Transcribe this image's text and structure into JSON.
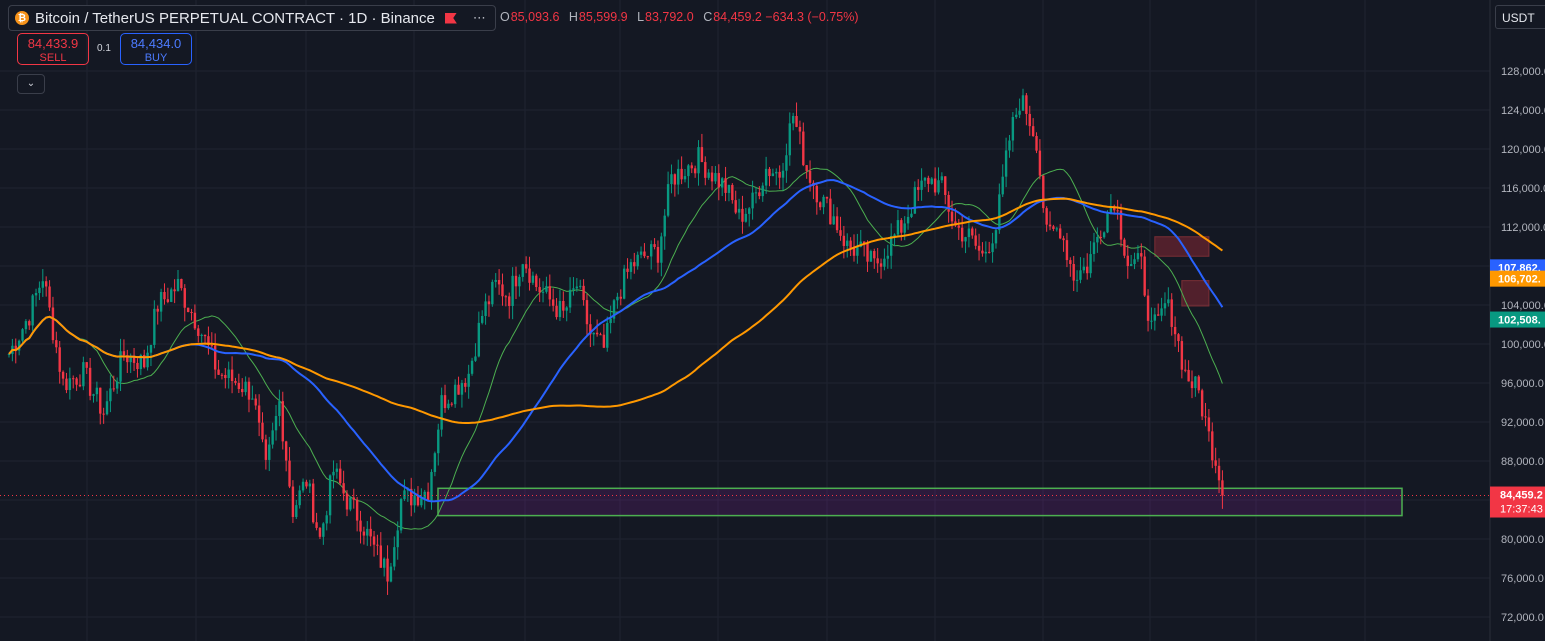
{
  "header": {
    "title": "Bitcoin / TetherUS PERPETUAL CONTRACT · 1D · Binance",
    "more_icon": "more-dots-icon",
    "flag_icon": "flag-icon",
    "coin_icon": "bitcoin-icon"
  },
  "ohlc": {
    "o_label": "O",
    "o": "85,093.6",
    "h_label": "H",
    "h": "85,599.9",
    "l_label": "L",
    "l": "83,792.0",
    "c_label": "C",
    "c": "84,459.2",
    "change": "−634.3 (−0.75%)"
  },
  "trade": {
    "sell_price": "84,433.9",
    "sell_label": "SELL",
    "buy_price": "84,434.0",
    "buy_label": "BUY",
    "spread": "0.1",
    "collapse_icon": "chevron-down-icon"
  },
  "currency": "USDT",
  "colors": {
    "background": "#141823",
    "up": "#089981",
    "down": "#f23645",
    "ma_fast": "#2962ff",
    "ma_slow": "#ff9800",
    "ma_thin": "#4caf50",
    "zone_border": "#4caf50"
  },
  "chart_data": {
    "type": "candlestick",
    "title": "",
    "ylim": [
      70000,
      132000
    ],
    "grid": true,
    "y_ticks": [
      "72,000.0",
      "76,000.0",
      "80,000.0",
      "84,000.0",
      "88,000.0",
      "92,000.0",
      "96,000.0",
      "100,000.0",
      "104,000.0",
      "108,000.0",
      "112,000.0",
      "116,000.0",
      "120,000.0",
      "124,000.0",
      "128,000.0"
    ],
    "y_tick_values": [
      72000,
      76000,
      80000,
      84000,
      88000,
      92000,
      96000,
      100000,
      104000,
      108000,
      112000,
      116000,
      120000,
      124000,
      128000
    ],
    "price_anchors": [
      [
        0,
        99000
      ],
      [
        6,
        103000
      ],
      [
        10,
        107000
      ],
      [
        16,
        96000
      ],
      [
        22,
        97000
      ],
      [
        28,
        93000
      ],
      [
        34,
        99000
      ],
      [
        40,
        98000
      ],
      [
        44,
        104000
      ],
      [
        50,
        106000
      ],
      [
        56,
        102000
      ],
      [
        62,
        97000
      ],
      [
        68,
        96000
      ],
      [
        72,
        95000
      ],
      [
        76,
        87000
      ],
      [
        80,
        94000
      ],
      [
        84,
        83000
      ],
      [
        88,
        86000
      ],
      [
        92,
        80000
      ],
      [
        96,
        87000
      ],
      [
        100,
        84000
      ],
      [
        104,
        82000
      ],
      [
        108,
        79000
      ],
      [
        112,
        76500
      ],
      [
        116,
        84000
      ],
      [
        120,
        84500
      ],
      [
        124,
        85000
      ],
      [
        128,
        94000
      ],
      [
        132,
        95500
      ],
      [
        136,
        97000
      ],
      [
        140,
        103000
      ],
      [
        144,
        106000
      ],
      [
        148,
        105000
      ],
      [
        152,
        109000
      ],
      [
        156,
        106000
      ],
      [
        160,
        104500
      ],
      [
        164,
        103000
      ],
      [
        168,
        106000
      ],
      [
        172,
        101000
      ],
      [
        176,
        99500
      ],
      [
        180,
        105000
      ],
      [
        184,
        108000
      ],
      [
        188,
        109000
      ],
      [
        192,
        109500
      ],
      [
        196,
        117000
      ],
      [
        200,
        118000
      ],
      [
        204,
        119000
      ],
      [
        208,
        117500
      ],
      [
        212,
        116000
      ],
      [
        216,
        113000
      ],
      [
        220,
        114500
      ],
      [
        224,
        118000
      ],
      [
        228,
        117500
      ],
      [
        232,
        123500
      ],
      [
        236,
        118000
      ],
      [
        240,
        115000
      ],
      [
        244,
        113000
      ],
      [
        248,
        110000
      ],
      [
        252,
        109500
      ],
      [
        256,
        108000
      ],
      [
        260,
        110000
      ],
      [
        264,
        112000
      ],
      [
        268,
        115000
      ],
      [
        272,
        117000
      ],
      [
        276,
        116000
      ],
      [
        280,
        112000
      ],
      [
        284,
        111000
      ],
      [
        288,
        109000
      ],
      [
        292,
        112000
      ],
      [
        296,
        121000
      ],
      [
        299,
        125000
      ],
      [
        301,
        124000
      ],
      [
        304,
        121000
      ],
      [
        307,
        111000
      ],
      [
        311,
        112000
      ],
      [
        315,
        107000
      ],
      [
        319,
        108000
      ],
      [
        323,
        112000
      ],
      [
        327,
        115000
      ],
      [
        331,
        108500
      ],
      [
        335,
        108000
      ],
      [
        338,
        101500
      ],
      [
        340,
        102000
      ],
      [
        342,
        104000
      ],
      [
        344,
        103000
      ],
      [
        348,
        97000
      ],
      [
        352,
        95000
      ],
      [
        355,
        90500
      ],
      [
        358,
        87000
      ],
      [
        359,
        84459
      ]
    ],
    "last_value": 84459.2,
    "ma_fast": {
      "name": "",
      "last": 107862
    },
    "ma_slow": {
      "name": "",
      "last": 106702
    },
    "ma_thin": {
      "name": "",
      "last": 102508
    },
    "last_label": {
      "value": "84,459.2",
      "countdown": "17:37:43"
    },
    "ma_labels": [
      {
        "text": "107,862.",
        "value": 107862,
        "color": "#2962ff"
      },
      {
        "text": "106,702.",
        "value": 106702,
        "color": "#ff9800"
      },
      {
        "text": "102,508.",
        "value": 102508,
        "color": "#089981"
      }
    ],
    "zones": [
      {
        "type": "support",
        "x_from": 110,
        "x_to": 420,
        "y_top": 85200,
        "y_bottom": 82400
      },
      {
        "type": "supply",
        "x_from": 339,
        "x_to": 355,
        "y_top": 111000,
        "y_bottom": 109000
      },
      {
        "type": "supply",
        "x_from": 347,
        "x_to": 355,
        "y_top": 106500,
        "y_bottom": 103900
      }
    ]
  }
}
